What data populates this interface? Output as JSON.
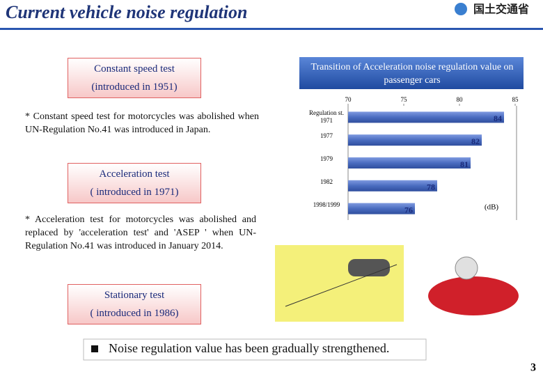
{
  "slide": {
    "title": "Current vehicle noise regulation",
    "logo": "国土交通省",
    "boxes": [
      {
        "heading": "Constant speed test",
        "subheading": "(introduced in 1951)"
      },
      {
        "heading": "Acceleration test",
        "subheading": "( introduced in 1971)"
      },
      {
        "heading": "Stationary test",
        "subheading": "( introduced in 1986)"
      }
    ],
    "notes": [
      "* Constant speed test for motorcycles was abolished when UN-Regulation No.41 was introduced in Japan.",
      "* Acceleration test for motorcycles was abolished and replaced by 'acceleration test' and 'ASEP ' when UN-Regulation No.41 was introduced in January 2014."
    ],
    "bullet": "Noise regulation value has been gradually strengthened.",
    "page_number": "3"
  },
  "chart_data": {
    "type": "bar",
    "orientation": "horizontal",
    "title": "Transition of Acceleration noise regulation value on passenger cars",
    "categories": [
      "Regulation st. 1971",
      "1977",
      "1979",
      "1982",
      "1998/1999"
    ],
    "values": [
      84,
      82,
      81,
      78,
      76
    ],
    "color": "#4a6cc0",
    "xlim": [
      70,
      85
    ],
    "xticks": [
      70,
      75,
      80,
      85
    ],
    "unit_label": "(dB)"
  }
}
